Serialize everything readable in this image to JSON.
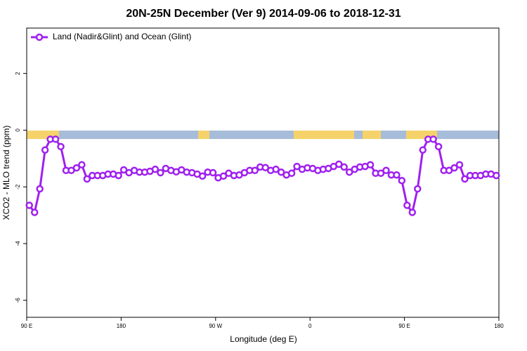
{
  "chart_data": {
    "type": "line",
    "title": "20N-25N December (Ver 9)   2014-09-06 to 2018-12-31",
    "x_label": "Longitude (deg E)",
    "y_label": "XCO2 - MLO trend (ppm)",
    "xlim": [
      90,
      540
    ],
    "ylim": [
      -6.6,
      3.6
    ],
    "xticks": [
      {
        "value": 90,
        "label": "90 E"
      },
      180,
      {
        "value": 270,
        "label": "90 W"
      },
      {
        "value": 360,
        "label": "0"
      },
      {
        "value": 450,
        "label": "90 E"
      },
      {
        "value": 540,
        "label": "180"
      }
    ],
    "yticks": [
      -6,
      -4,
      -2,
      0,
      2
    ],
    "legend": "upper left",
    "x": [
      92.5,
      97.5,
      102.5,
      107.5,
      112.5,
      117.5,
      122.5,
      127.5,
      132.5,
      137.5,
      142.5,
      147.5,
      152.5,
      157.5,
      162.5,
      167.5,
      172.5,
      177.5,
      182.5,
      187.5,
      192.5,
      197.5,
      202.5,
      207.5,
      212.5,
      217.5,
      222.5,
      227.5,
      232.5,
      237.5,
      242.5,
      247.5,
      252.5,
      257.5,
      262.5,
      267.5,
      272.5,
      277.5,
      282.5,
      287.5,
      292.5,
      297.5,
      302.5,
      307.5,
      312.5,
      317.5,
      322.5,
      327.5,
      332.5,
      337.5,
      342.5,
      347.5,
      352.5,
      357.5,
      362.5,
      367.5,
      372.5,
      377.5,
      382.5,
      387.5,
      392.5,
      397.5,
      402.5,
      407.5,
      412.5,
      417.5,
      422.5,
      427.5,
      432.5,
      437.5,
      442.5,
      447.5,
      452.5,
      457.5,
      462.5,
      467.5,
      472.5,
      477.5,
      482.5,
      487.5,
      492.5,
      497.5,
      502.5,
      507.5,
      512.5,
      517.5,
      522.5,
      527.5,
      532.5,
      537.5
    ],
    "series": [
      {
        "name": "Land (Nadir&Glint) and Ocean (Glint)",
        "color": "#a020f0",
        "values": [
          -2.65,
          -2.9,
          -2.07,
          -0.7,
          -0.32,
          -0.32,
          -0.58,
          -1.42,
          -1.42,
          -1.33,
          -1.22,
          -1.72,
          -1.6,
          -1.6,
          -1.6,
          -1.55,
          -1.55,
          -1.6,
          -1.4,
          -1.5,
          -1.42,
          -1.48,
          -1.48,
          -1.45,
          -1.38,
          -1.5,
          -1.35,
          -1.42,
          -1.47,
          -1.4,
          -1.48,
          -1.5,
          -1.55,
          -1.62,
          -1.48,
          -1.5,
          -1.68,
          -1.62,
          -1.52,
          -1.6,
          -1.58,
          -1.5,
          -1.42,
          -1.42,
          -1.3,
          -1.32,
          -1.42,
          -1.38,
          -1.48,
          -1.58,
          -1.52,
          -1.28,
          -1.38,
          -1.33,
          -1.35,
          -1.42,
          -1.38,
          -1.35,
          -1.28,
          -1.2,
          -1.3,
          -1.48,
          -1.38,
          -1.3,
          -1.28,
          -1.22,
          -1.52,
          -1.52,
          -1.42,
          -1.58,
          -1.58,
          -1.78,
          -2.65,
          -2.9,
          -2.07,
          -0.7,
          -0.32,
          -0.32,
          -0.58,
          -1.42,
          -1.42,
          -1.33,
          -1.22,
          -1.72,
          -1.6,
          -1.6,
          -1.6,
          -1.55,
          -1.55,
          -1.6
        ]
      }
    ]
  }
}
